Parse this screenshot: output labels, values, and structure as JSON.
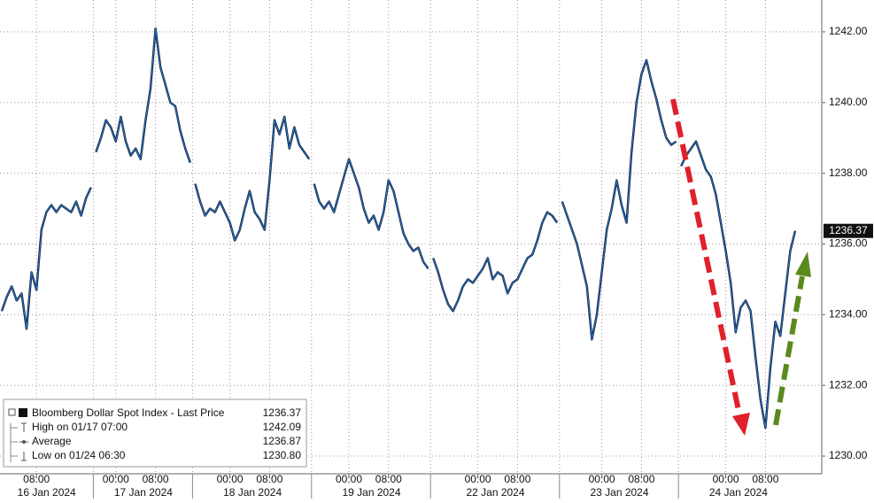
{
  "chart_data": {
    "type": "line",
    "color": "#1f6fcf",
    "ylim": [
      1229.5,
      1242.9
    ],
    "yticks": [
      {
        "value": 1230,
        "label": "1230.00"
      },
      {
        "value": 1232,
        "label": "1232.00"
      },
      {
        "value": 1234,
        "label": "1234.00"
      },
      {
        "value": 1236,
        "label": "1236.00"
      },
      {
        "value": 1238,
        "label": "1238.00"
      },
      {
        "value": 1240,
        "label": "1240.00"
      },
      {
        "value": 1242,
        "label": "1242.00"
      }
    ],
    "grid": true,
    "sessions": [
      {
        "date": "16 Jan 2024",
        "times": [
          null,
          null,
          null,
          null,
          null,
          null,
          null,
          "08:00",
          null,
          null,
          null,
          null,
          null,
          null,
          null,
          null,
          null,
          null,
          null
        ],
        "values": [
          1234.1,
          1234.5,
          1234.8,
          1234.4,
          1234.6,
          1233.6,
          1235.2,
          1234.7,
          1236.4,
          1236.9,
          1237.1,
          1236.9,
          1237.1,
          1237.0,
          1236.9,
          1237.2,
          1236.8,
          1237.3,
          1237.6
        ]
      },
      {
        "date": "17 Jan 2024",
        "times": [
          null,
          null,
          null,
          null,
          "00:00",
          null,
          null,
          null,
          null,
          null,
          null,
          null,
          "08:00",
          null,
          null,
          null,
          null,
          null,
          null,
          null
        ],
        "values": [
          1238.6,
          1239.0,
          1239.5,
          1239.3,
          1238.9,
          1239.6,
          1238.9,
          1238.5,
          1238.7,
          1238.4,
          1239.5,
          1240.4,
          1242.09,
          1241.0,
          1240.5,
          1240.0,
          1239.9,
          1239.2,
          1238.7,
          1238.3
        ]
      },
      {
        "date": "18 Jan 2024",
        "times": [
          null,
          null,
          null,
          null,
          null,
          null,
          null,
          "00:00",
          null,
          null,
          null,
          null,
          null,
          null,
          null,
          "08:00",
          null,
          null,
          null,
          null,
          null,
          null,
          null,
          null
        ],
        "values": [
          1237.7,
          1237.2,
          1236.8,
          1237.0,
          1236.9,
          1237.2,
          1236.9,
          1236.6,
          1236.1,
          1236.4,
          1237.0,
          1237.5,
          1236.9,
          1236.7,
          1236.4,
          1237.8,
          1239.5,
          1239.1,
          1239.6,
          1238.7,
          1239.3,
          1238.8,
          1238.6,
          1238.4
        ]
      },
      {
        "date": "19 Jan 2024",
        "times": [
          null,
          null,
          null,
          null,
          null,
          null,
          null,
          "00:00",
          null,
          null,
          null,
          null,
          null,
          null,
          null,
          "08:00",
          null,
          null,
          null,
          null,
          null,
          null,
          null,
          null
        ],
        "values": [
          1237.7,
          1237.2,
          1237.0,
          1237.2,
          1236.9,
          1237.4,
          1237.9,
          1238.4,
          1238.0,
          1237.6,
          1237.0,
          1236.6,
          1236.8,
          1236.4,
          1236.9,
          1237.8,
          1237.5,
          1236.9,
          1236.3,
          1236.0,
          1235.8,
          1235.9,
          1235.5,
          1235.3
        ]
      },
      {
        "date": "22 Jan 2024",
        "times": [
          null,
          null,
          null,
          null,
          null,
          null,
          null,
          null,
          null,
          "00:00",
          null,
          null,
          null,
          null,
          null,
          null,
          null,
          "08:00",
          null,
          null,
          null,
          null,
          null,
          null,
          null,
          null
        ],
        "values": [
          1235.6,
          1235.2,
          1234.7,
          1234.3,
          1234.1,
          1234.4,
          1234.8,
          1235.0,
          1234.9,
          1235.1,
          1235.3,
          1235.6,
          1235.0,
          1235.2,
          1235.1,
          1234.6,
          1234.9,
          1235.0,
          1235.3,
          1235.6,
          1235.7,
          1236.1,
          1236.6,
          1236.9,
          1236.8,
          1236.6
        ]
      },
      {
        "date": "23 Jan 2024",
        "times": [
          null,
          null,
          null,
          null,
          null,
          null,
          null,
          null,
          "00:00",
          null,
          null,
          null,
          null,
          null,
          null,
          null,
          "08:00",
          null,
          null,
          null,
          null,
          null,
          null,
          null
        ],
        "values": [
          1237.2,
          1236.8,
          1236.4,
          1236.0,
          1235.4,
          1234.8,
          1233.3,
          1234.0,
          1235.2,
          1236.4,
          1237.0,
          1237.8,
          1237.1,
          1236.6,
          1238.6,
          1240.0,
          1240.8,
          1241.2,
          1240.6,
          1240.1,
          1239.5,
          1239.0,
          1238.8,
          1238.9
        ]
      },
      {
        "date": "24 Jan 2024",
        "times": [
          null,
          null,
          null,
          null,
          null,
          null,
          null,
          null,
          null,
          "00:00",
          null,
          null,
          null,
          null,
          null,
          null,
          null,
          "08:00",
          null,
          null,
          null,
          null,
          null,
          null
        ],
        "values": [
          1238.2,
          1238.5,
          1238.7,
          1238.9,
          1238.5,
          1238.1,
          1237.9,
          1237.4,
          1236.6,
          1235.8,
          1234.9,
          1233.5,
          1234.2,
          1234.4,
          1234.1,
          1232.8,
          1231.6,
          1230.8,
          1232.5,
          1233.8,
          1233.4,
          1234.6,
          1235.8,
          1236.37
        ]
      }
    ],
    "legend": [
      {
        "label": "Bloomberg Dollar Spot Index - Last Price",
        "value": "1236.37"
      },
      {
        "label": "High on 01/17 07:00",
        "value": "1242.09"
      },
      {
        "label": "Average",
        "value": "1236.87"
      },
      {
        "label": "Low on 01/24 06:30",
        "value": "1230.80"
      }
    ]
  }
}
